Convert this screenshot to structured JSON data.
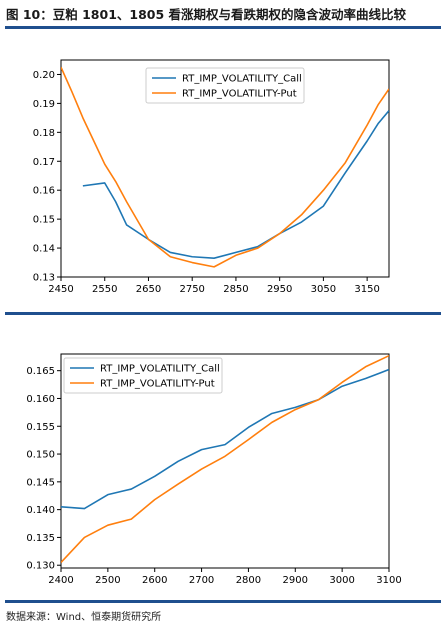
{
  "header": {
    "title": "图 10：豆粕 1801、1805 看涨期权与看跌期权的隐含波动率曲线比较"
  },
  "footer": {
    "source": "数据来源：Wind、恒泰期货研究所"
  },
  "colors": {
    "call": "#1f77b4",
    "put": "#ff7f0e",
    "rule": "#1f4f8e"
  },
  "chart_data": [
    {
      "type": "line",
      "title": "",
      "xlabel": "",
      "ylabel": "",
      "xlim": [
        2450,
        3200
      ],
      "ylim": [
        0.13,
        0.205
      ],
      "xticks": [
        2450,
        2550,
        2650,
        2750,
        2850,
        2950,
        3050,
        3150
      ],
      "yticks": [
        0.13,
        0.14,
        0.15,
        0.16,
        0.17,
        0.18,
        0.19,
        0.2
      ],
      "ytick_labels": [
        "0.13",
        "0.14",
        "0.15",
        "0.16",
        "0.17",
        "0.18",
        "0.19",
        "0.20"
      ],
      "legend_position": "top-center",
      "series": [
        {
          "name": "RT_IMP_VOLATILITY_Call",
          "color": "#1f77b4",
          "x": [
            2500,
            2550,
            2575,
            2600,
            2650,
            2700,
            2750,
            2800,
            2850,
            2900,
            2950,
            3000,
            3050,
            3100,
            3150,
            3175,
            3200
          ],
          "y": [
            0.1615,
            0.1625,
            0.156,
            0.148,
            0.143,
            0.1385,
            0.137,
            0.1365,
            0.1385,
            0.1405,
            0.145,
            0.149,
            0.1545,
            0.166,
            0.177,
            0.183,
            0.1875
          ]
        },
        {
          "name": "RT_IMP_VOLATILITY-Put",
          "color": "#ff7f0e",
          "x": [
            2450,
            2475,
            2500,
            2525,
            2550,
            2575,
            2600,
            2650,
            2700,
            2750,
            2800,
            2850,
            2900,
            2950,
            3000,
            3050,
            3100,
            3150,
            3175,
            3200
          ],
          "y": [
            0.2025,
            0.194,
            0.185,
            0.177,
            0.169,
            0.163,
            0.156,
            0.143,
            0.137,
            0.135,
            0.1335,
            0.1375,
            0.14,
            0.145,
            0.1515,
            0.16,
            0.1695,
            0.1825,
            0.1895,
            0.195
          ]
        }
      ]
    },
    {
      "type": "line",
      "title": "",
      "xlabel": "",
      "ylabel": "",
      "xlim": [
        2400,
        3100
      ],
      "ylim": [
        0.1295,
        0.168
      ],
      "xticks": [
        2400,
        2500,
        2600,
        2700,
        2800,
        2900,
        3000,
        3100
      ],
      "yticks": [
        0.13,
        0.135,
        0.14,
        0.145,
        0.15,
        0.155,
        0.16,
        0.165
      ],
      "ytick_labels": [
        "0.130",
        "0.135",
        "0.140",
        "0.145",
        "0.150",
        "0.155",
        "0.160",
        "0.165"
      ],
      "legend_position": "top-left",
      "series": [
        {
          "name": "RT_IMP_VOLATILITY_Call",
          "color": "#1f77b4",
          "x": [
            2400,
            2450,
            2500,
            2550,
            2600,
            2650,
            2700,
            2750,
            2800,
            2850,
            2900,
            2950,
            3000,
            3050,
            3100
          ],
          "y": [
            0.1405,
            0.1402,
            0.1427,
            0.1437,
            0.146,
            0.1487,
            0.1508,
            0.1517,
            0.1548,
            0.1573,
            0.1584,
            0.1598,
            0.1622,
            0.1636,
            0.1652
          ]
        },
        {
          "name": "RT_IMP_VOLATILITY-Put",
          "color": "#ff7f0e",
          "x": [
            2400,
            2450,
            2500,
            2550,
            2600,
            2650,
            2700,
            2750,
            2800,
            2850,
            2900,
            2950,
            3000,
            3050,
            3100
          ],
          "y": [
            0.1305,
            0.135,
            0.1372,
            0.1383,
            0.1418,
            0.1446,
            0.1473,
            0.1496,
            0.1526,
            0.1557,
            0.158,
            0.1598,
            0.1629,
            0.1657,
            0.1677
          ]
        }
      ]
    }
  ]
}
